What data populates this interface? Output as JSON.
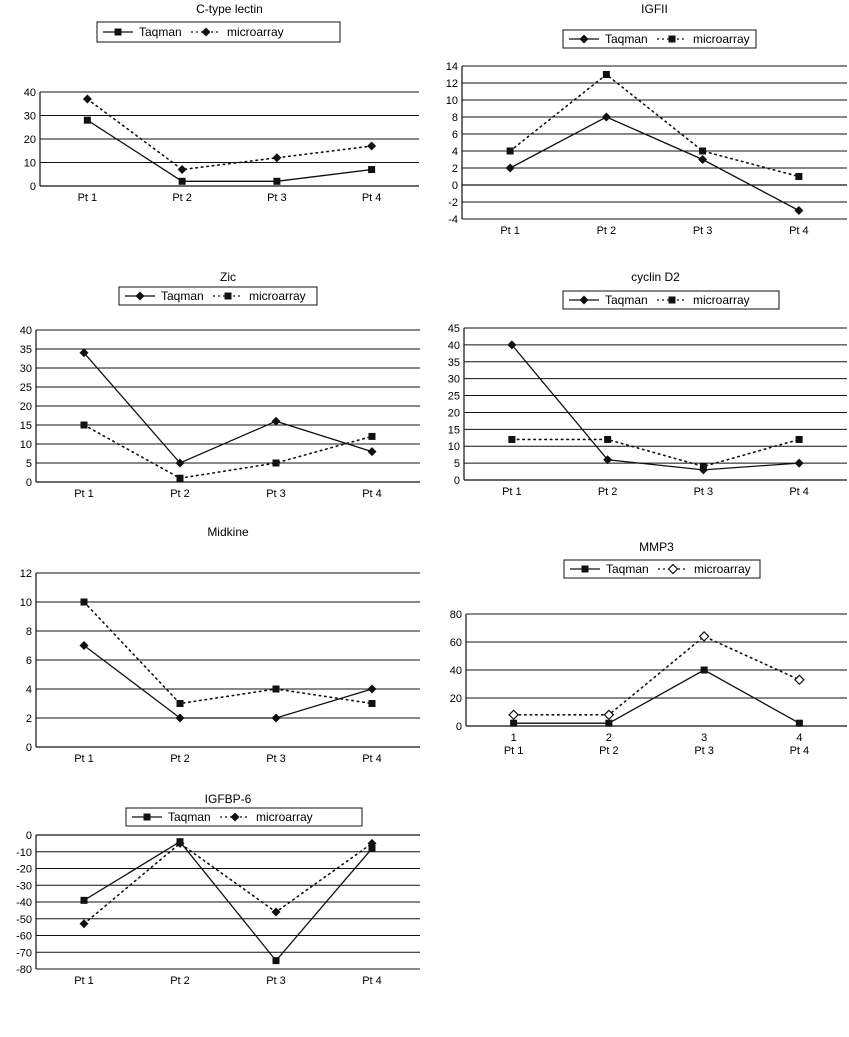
{
  "chart_data": [
    {
      "type": "line",
      "title": "C-type lectin",
      "categories": [
        "Pt 1",
        "Pt 2",
        "Pt 3",
        "Pt 4"
      ],
      "series": [
        {
          "name": "Taqman",
          "values": [
            28,
            2,
            2,
            7
          ],
          "style": "solid",
          "marker": "square"
        },
        {
          "name": "microarray",
          "values": [
            37,
            7,
            12,
            17
          ],
          "style": "dotted",
          "marker": "diamond"
        }
      ],
      "ylim": [
        0,
        40
      ],
      "yticks": [
        "0",
        "10",
        "20",
        "30",
        "40"
      ],
      "grid": true,
      "legend": "top"
    },
    {
      "type": "line",
      "title": "IGFII",
      "categories": [
        "Pt 1",
        "Pt 2",
        "Pt 3",
        "Pt 4"
      ],
      "series": [
        {
          "name": "Taqman",
          "values": [
            2,
            8,
            3,
            -3
          ],
          "style": "solid",
          "marker": "diamond"
        },
        {
          "name": "microarray",
          "values": [
            4,
            13,
            4,
            1
          ],
          "style": "dotted",
          "marker": "square"
        }
      ],
      "ylim": [
        -4,
        14
      ],
      "yticks": [
        "-4",
        "-2",
        "0",
        "2",
        "4",
        "6",
        "8",
        "10",
        "12",
        "14"
      ],
      "grid": true,
      "legend": "top"
    },
    {
      "type": "line",
      "title": "Zic",
      "categories": [
        "Pt 1",
        "Pt 2",
        "Pt 3",
        "Pt 4"
      ],
      "series": [
        {
          "name": "Taqman",
          "values": [
            34,
            5,
            16,
            8
          ],
          "style": "solid",
          "marker": "diamond"
        },
        {
          "name": "microarray",
          "values": [
            15,
            1,
            5,
            12
          ],
          "style": "dotted",
          "marker": "square"
        }
      ],
      "ylim": [
        0,
        40
      ],
      "yticks": [
        "0",
        "5",
        "10",
        "15",
        "20",
        "25",
        "30",
        "35",
        "40"
      ],
      "grid": true,
      "legend": "top"
    },
    {
      "type": "line",
      "title": "cyclin D2",
      "categories": [
        "Pt 1",
        "Pt 2",
        "Pt 3",
        "Pt 4"
      ],
      "series": [
        {
          "name": "Taqman",
          "values": [
            40,
            6,
            3,
            5
          ],
          "style": "solid",
          "marker": "diamond"
        },
        {
          "name": "microarray",
          "values": [
            12,
            12,
            4,
            12
          ],
          "style": "dotted",
          "marker": "square"
        }
      ],
      "ylim": [
        0,
        45
      ],
      "yticks": [
        "0",
        "5",
        "10",
        "15",
        "20",
        "25",
        "30",
        "35",
        "40",
        "45"
      ],
      "grid": true,
      "legend": "top"
    },
    {
      "type": "line",
      "title": "Midkine",
      "categories": [
        "Pt 1",
        "Pt 2",
        "Pt 3",
        "Pt 4"
      ],
      "series": [
        {
          "name": "",
          "values": [
            7,
            2,
            2,
            4
          ],
          "style": "solid",
          "marker": "diamond"
        },
        {
          "name": "",
          "values": [
            10,
            3,
            4,
            3
          ],
          "style": "dotted",
          "marker": "square"
        }
      ],
      "ylim": [
        0,
        12
      ],
      "yticks": [
        "0",
        "2",
        "4",
        "6",
        "8",
        "10",
        "12"
      ],
      "grid": true,
      "legend": "none"
    },
    {
      "type": "line",
      "title": "MMP3",
      "categories": [
        "1\nPt 1",
        "2\nPt 2",
        "3\nPt 3",
        "4\nPt 4"
      ],
      "series": [
        {
          "name": "Taqman",
          "values": [
            2,
            2,
            40,
            2
          ],
          "style": "solid",
          "marker": "square"
        },
        {
          "name": "microarray",
          "values": [
            8,
            8,
            64,
            33
          ],
          "style": "dotted",
          "marker": "open-diamond"
        }
      ],
      "ylim": [
        0,
        80
      ],
      "yticks": [
        "0",
        "20",
        "40",
        "60",
        "80"
      ],
      "grid": true,
      "legend": "top"
    },
    {
      "type": "line",
      "title": "IGFBP-6",
      "categories": [
        "Pt 1",
        "Pt 2",
        "Pt 3",
        "Pt 4"
      ],
      "series": [
        {
          "name": "Taqman",
          "values": [
            -39,
            -4,
            -75,
            -8
          ],
          "style": "solid",
          "marker": "square"
        },
        {
          "name": "microarray",
          "values": [
            -53,
            -5,
            -46,
            -5
          ],
          "style": "dotted",
          "marker": "diamond"
        }
      ],
      "ylim": [
        -80,
        0
      ],
      "yticks": [
        "-80",
        "-70",
        "-60",
        "-50",
        "-40",
        "-30",
        "-20",
        "-10",
        "0"
      ],
      "grid": true,
      "legend": "top"
    }
  ]
}
